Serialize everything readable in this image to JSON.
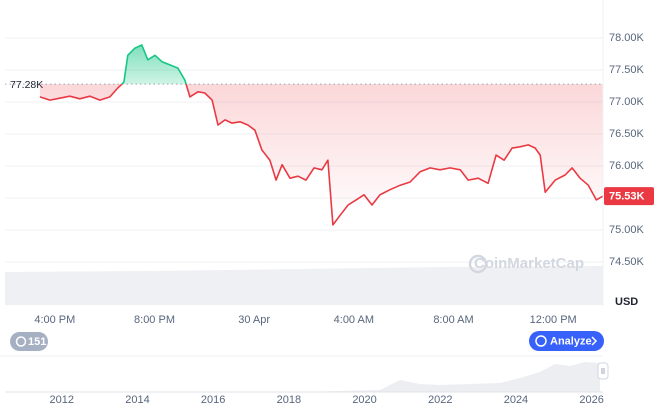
{
  "chart_data": {
    "type": "line",
    "unit": "USD",
    "watermark": "CoinMarketCap",
    "x": [
      3.4,
      3.8,
      4.2,
      4.6,
      5.0,
      5.41,
      5.81,
      6.21,
      6.53,
      6.77,
      6.93,
      7.21,
      7.49,
      7.73,
      8.02,
      8.3,
      8.62,
      8.94,
      9.22,
      9.42,
      9.74,
      10.02,
      10.31,
      10.55,
      10.83,
      11.11,
      11.43,
      11.75,
      12.03,
      12.31,
      12.63,
      12.88,
      13.12,
      13.44,
      13.76,
      14.08,
      14.4,
      14.72,
      14.96,
      15.16,
      15.45,
      15.77,
      16.09,
      16.41,
      16.73,
      17.05,
      17.45,
      17.86,
      18.26,
      18.66,
      19.06,
      19.46,
      19.86,
      20.27,
      20.59,
      20.99,
      21.39,
      21.71,
      22.03,
      22.35,
      22.67,
      23.0,
      23.28,
      23.48,
      23.68,
      24.08,
      24.48,
      24.76,
      25.08,
      25.41,
      25.73,
      26.0
    ],
    "series": [
      {
        "values": [
          77.08,
          77.03,
          77.06,
          77.09,
          77.05,
          77.09,
          77.03,
          77.08,
          77.22,
          77.31,
          77.73,
          77.84,
          77.89,
          77.66,
          77.73,
          77.63,
          77.58,
          77.53,
          77.34,
          77.08,
          77.16,
          77.14,
          77.03,
          76.64,
          76.72,
          76.67,
          76.69,
          76.64,
          76.56,
          76.25,
          76.09,
          75.78,
          76.02,
          75.81,
          75.84,
          75.78,
          75.97,
          75.94,
          76.09,
          75.08,
          75.23,
          75.39,
          75.47,
          75.55,
          75.39,
          75.55,
          75.63,
          75.7,
          75.75,
          75.91,
          75.97,
          75.94,
          75.97,
          75.94,
          75.78,
          75.81,
          75.73,
          76.17,
          76.09,
          76.28,
          76.3,
          76.33,
          76.28,
          76.17,
          75.59,
          75.78,
          75.86,
          75.97,
          75.81,
          75.7,
          75.47,
          75.53
        ],
        "color_up": "#16c784",
        "color_down": "#ea3943"
      }
    ],
    "xlim": [
      2,
      26
    ],
    "xticks": [
      {
        "value": 4,
        "label": "4:00 PM"
      },
      {
        "value": 8,
        "label": "8:00 PM"
      },
      {
        "value": 12,
        "label": "30 Apr"
      },
      {
        "value": 16,
        "label": "4:00 AM"
      },
      {
        "value": 20,
        "label": "8:00 AM"
      },
      {
        "value": 24,
        "label": "12:00 PM"
      }
    ],
    "ylim": [
      74.5,
      78.5
    ],
    "yticks": [
      {
        "value": 74.5,
        "label": "74.50K"
      },
      {
        "value": 75,
        "label": "75.00K"
      },
      {
        "value": 75.5,
        "label": "75.50K"
      },
      {
        "value": 76,
        "label": "76.00K"
      },
      {
        "value": 76.5,
        "label": "76.50K"
      },
      {
        "value": 77,
        "label": "77.00K"
      },
      {
        "value": 77.5,
        "label": "77.50K"
      },
      {
        "value": 78,
        "label": "78.00K"
      }
    ],
    "baseline": {
      "value": 77.28,
      "label": "77.28K"
    },
    "price_tag": {
      "value": 75.53,
      "label": "75.53K"
    },
    "grid": true
  },
  "navigator": {
    "xlim": [
      2010.5,
      2026.3
    ],
    "xticks": [
      2012,
      2014,
      2016,
      2018,
      2020,
      2022,
      2024,
      2026
    ]
  },
  "controls": {
    "badge": "151",
    "analyze": "Analyze"
  }
}
